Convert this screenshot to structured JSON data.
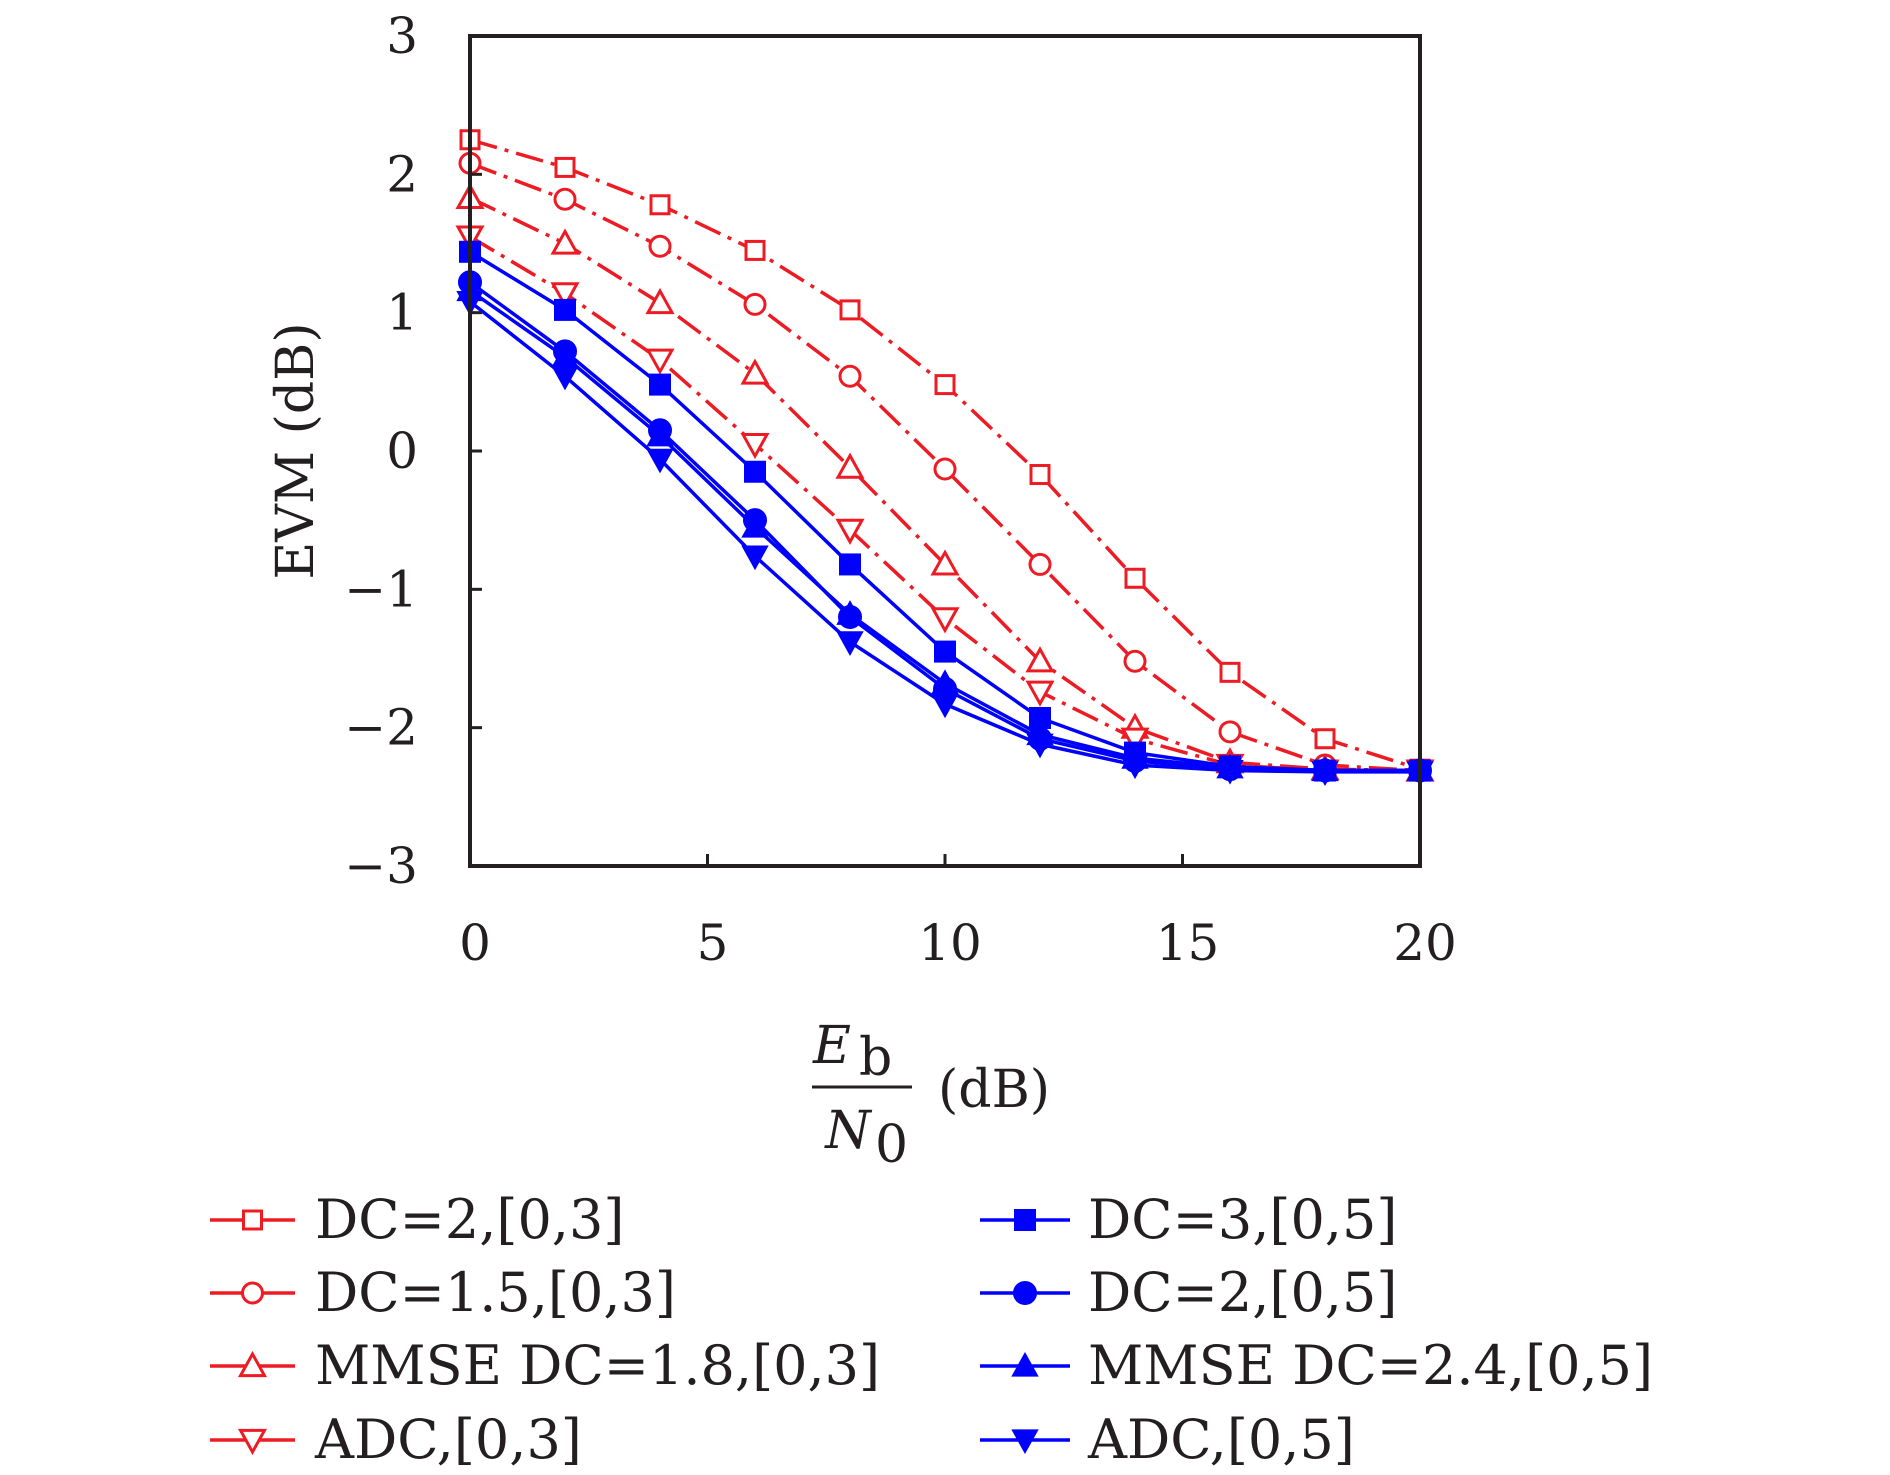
{
  "chart_data": {
    "type": "line",
    "xlabel": {
      "numerator": "E",
      "numerator_sub": "b",
      "denominator": "N",
      "denominator_sub": "0",
      "unit": "(dB)"
    },
    "ylabel": "EVM (dB)",
    "xlim": [
      0,
      20
    ],
    "ylim": [
      -3,
      3
    ],
    "xticks": [
      0,
      5,
      10,
      15,
      20
    ],
    "yticks": [
      -3,
      -2,
      -1,
      0,
      1,
      2,
      3
    ],
    "ytick_labels": [
      "−3",
      "−2",
      "−1",
      "0",
      "1",
      "2",
      "3"
    ],
    "grid": false,
    "legend_position": "bottom",
    "x": [
      0,
      2,
      4,
      6,
      8,
      10,
      12,
      14,
      16,
      18,
      20
    ],
    "series": [
      {
        "name": "DC=2,[0,3]",
        "color": "#ed1c24",
        "marker": "square-open",
        "dash": "dashdot",
        "values": [
          2.25,
          2.05,
          1.78,
          1.45,
          1.02,
          0.48,
          -0.17,
          -0.92,
          -1.6,
          -2.08,
          -2.3
        ]
      },
      {
        "name": "DC=1.5,[0,3]",
        "color": "#ed1c24",
        "marker": "circle-open",
        "dash": "dashdot",
        "values": [
          2.08,
          1.82,
          1.48,
          1.06,
          0.54,
          -0.13,
          -0.82,
          -1.52,
          -2.03,
          -2.27,
          -2.31
        ]
      },
      {
        "name": "MMSE DC=1.8,[0,3]",
        "color": "#ed1c24",
        "marker": "triangle-up-open",
        "dash": "dashdot",
        "values": [
          1.83,
          1.5,
          1.07,
          0.56,
          -0.12,
          -0.82,
          -1.52,
          -2.0,
          -2.25,
          -2.3,
          -2.31
        ]
      },
      {
        "name": "ADC,[0,3]",
        "color": "#ed1c24",
        "marker": "triangle-down-open",
        "dash": "dashdot",
        "values": [
          1.55,
          1.14,
          0.66,
          0.05,
          -0.57,
          -1.21,
          -1.74,
          -2.08,
          -2.27,
          -2.31,
          -2.31
        ]
      },
      {
        "name": "DC=3,[0,5]",
        "color": "#0000ff",
        "marker": "square-filled",
        "dash": "solid",
        "values": [
          1.44,
          1.02,
          0.48,
          -0.15,
          -0.82,
          -1.45,
          -1.93,
          -2.18,
          -2.28,
          -2.31,
          -2.31
        ]
      },
      {
        "name": "DC=2,[0,5]",
        "color": "#0000ff",
        "marker": "circle-filled",
        "dash": "solid",
        "values": [
          1.22,
          0.72,
          0.15,
          -0.5,
          -1.2,
          -1.72,
          -2.08,
          -2.24,
          -2.3,
          -2.31,
          -2.31
        ]
      },
      {
        "name": "MMSE DC=2.4,[0,5]",
        "color": "#0000ff",
        "marker": "triangle-up-filled",
        "dash": "solid",
        "values": [
          1.16,
          0.68,
          0.11,
          -0.55,
          -1.18,
          -1.68,
          -2.05,
          -2.22,
          -2.29,
          -2.31,
          -2.31
        ]
      },
      {
        "name": "ADC,[0,5]",
        "color": "#0000ff",
        "marker": "triangle-down-filled",
        "dash": "solid",
        "values": [
          1.08,
          0.54,
          -0.06,
          -0.76,
          -1.38,
          -1.83,
          -2.12,
          -2.27,
          -2.31,
          -2.32,
          -2.32
        ]
      }
    ]
  }
}
